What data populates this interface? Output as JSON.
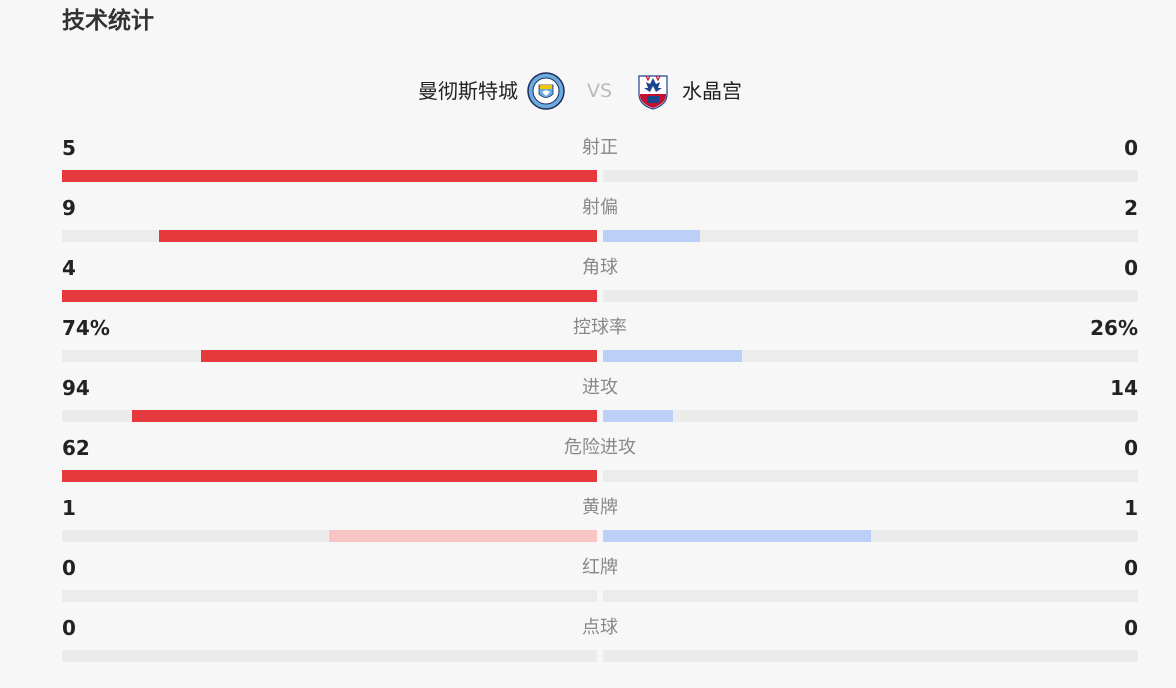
{
  "section_title": "技术统计",
  "match": {
    "home_team": "曼彻斯特城",
    "home_crest_icon": "manchester-city-crest-icon",
    "vs_text": "VS",
    "away_team": "水晶宫",
    "away_crest_icon": "crystal-palace-crest-icon"
  },
  "colors": {
    "home_bar": "#e5393b",
    "home_bar_light": "#f8c4c4",
    "away_bar": "#bcd0f7",
    "track": "#ececec"
  },
  "stats": [
    {
      "label": "射正",
      "home": "5",
      "away": "0",
      "home_fraction": 1.0,
      "away_fraction": 0.0
    },
    {
      "label": "射偏",
      "home": "9",
      "away": "2",
      "home_fraction": 0.818,
      "away_fraction": 0.182
    },
    {
      "label": "角球",
      "home": "4",
      "away": "0",
      "home_fraction": 1.0,
      "away_fraction": 0.0
    },
    {
      "label": "控球率",
      "home": "74%",
      "away": "26%",
      "home_fraction": 0.74,
      "away_fraction": 0.26
    },
    {
      "label": "进攻",
      "home": "94",
      "away": "14",
      "home_fraction": 0.87,
      "away_fraction": 0.13
    },
    {
      "label": "危险进攻",
      "home": "62",
      "away": "0",
      "home_fraction": 1.0,
      "away_fraction": 0.0
    },
    {
      "label": "黄牌",
      "home": "1",
      "away": "1",
      "home_fraction": 0.5,
      "away_fraction": 0.5,
      "home_light": true
    },
    {
      "label": "红牌",
      "home": "0",
      "away": "0",
      "home_fraction": 0.0,
      "away_fraction": 0.0
    },
    {
      "label": "点球",
      "home": "0",
      "away": "0",
      "home_fraction": 0.0,
      "away_fraction": 0.0
    }
  ]
}
